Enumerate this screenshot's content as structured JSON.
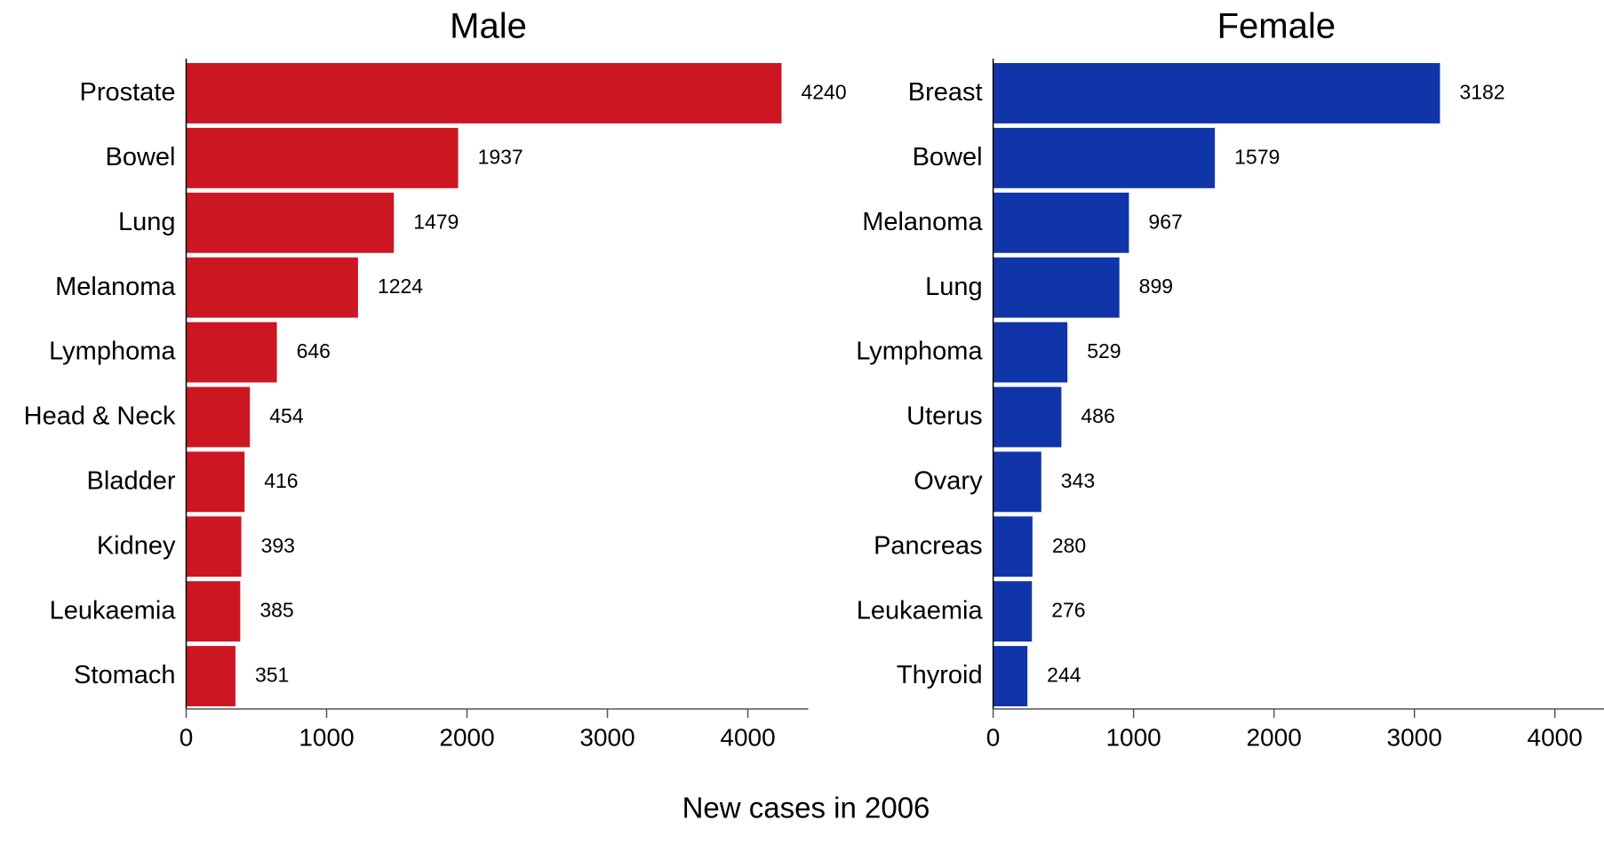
{
  "chart_data": [
    {
      "type": "barh",
      "title": "Male",
      "color": "#cc1722",
      "categories": [
        "Prostate",
        "Bowel",
        "Lung",
        "Melanoma",
        "Lymphoma",
        "Head & Neck",
        "Bladder",
        "Kidney",
        "Leukaemia",
        "Stomach"
      ],
      "values": [
        4240,
        1937,
        1479,
        1224,
        646,
        454,
        416,
        393,
        385,
        351
      ],
      "xlim": [
        0,
        4430
      ],
      "xticks": [
        0,
        1000,
        2000,
        3000,
        4000
      ]
    },
    {
      "type": "barh",
      "title": "Female",
      "color": "#1035a8",
      "categories": [
        "Breast",
        "Bowel",
        "Melanoma",
        "Lung",
        "Lymphoma",
        "Uterus",
        "Ovary",
        "Pancreas",
        "Leukaemia",
        "Thyroid"
      ],
      "values": [
        3182,
        1579,
        967,
        899,
        529,
        486,
        343,
        280,
        276,
        244
      ],
      "xlim": [
        0,
        4350
      ],
      "xticks": [
        0,
        1000,
        2000,
        3000,
        4000
      ]
    }
  ],
  "xlabel": "New cases in 2006"
}
